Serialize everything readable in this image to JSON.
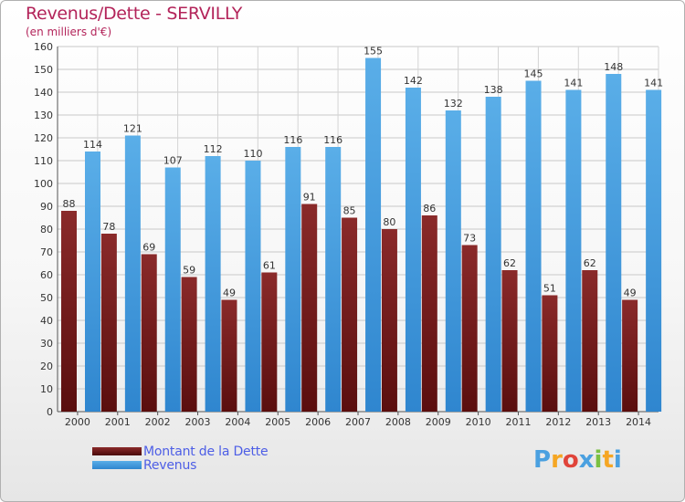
{
  "chart_data": {
    "type": "bar",
    "title": "Revenus/Dette - SERVILLY",
    "subtitle": "(en milliers d'€)",
    "categories": [
      "2000",
      "2001",
      "2002",
      "2003",
      "2004",
      "2005",
      "2006",
      "2007",
      "2008",
      "2009",
      "2010",
      "2011",
      "2012",
      "2013",
      "2014"
    ],
    "series": [
      {
        "name": "Montant de la Dette",
        "color": "#7a1a1a",
        "values": [
          88,
          78,
          69,
          59,
          49,
          61,
          91,
          85,
          80,
          86,
          73,
          62,
          51,
          62,
          49
        ]
      },
      {
        "name": "Revenus",
        "color": "#4aa0e0",
        "values": [
          114,
          121,
          107,
          112,
          110,
          116,
          116,
          155,
          142,
          132,
          138,
          145,
          141,
          148,
          141
        ]
      }
    ],
    "ylim": [
      0,
      160
    ],
    "yticks": [
      0,
      10,
      20,
      30,
      40,
      50,
      60,
      70,
      80,
      90,
      100,
      110,
      120,
      130,
      140,
      150,
      160
    ],
    "grid": true,
    "legend_position": "bottom-left"
  },
  "logo": {
    "text": "Proxiti",
    "letters": [
      "P",
      "r",
      "o",
      "x",
      "i",
      "t",
      "i"
    ],
    "colors": [
      "#4aa0e0",
      "#f5a623",
      "#e0443a",
      "#4aa0e0",
      "#7ac043",
      "#f5a623",
      "#4aa0e0"
    ]
  }
}
